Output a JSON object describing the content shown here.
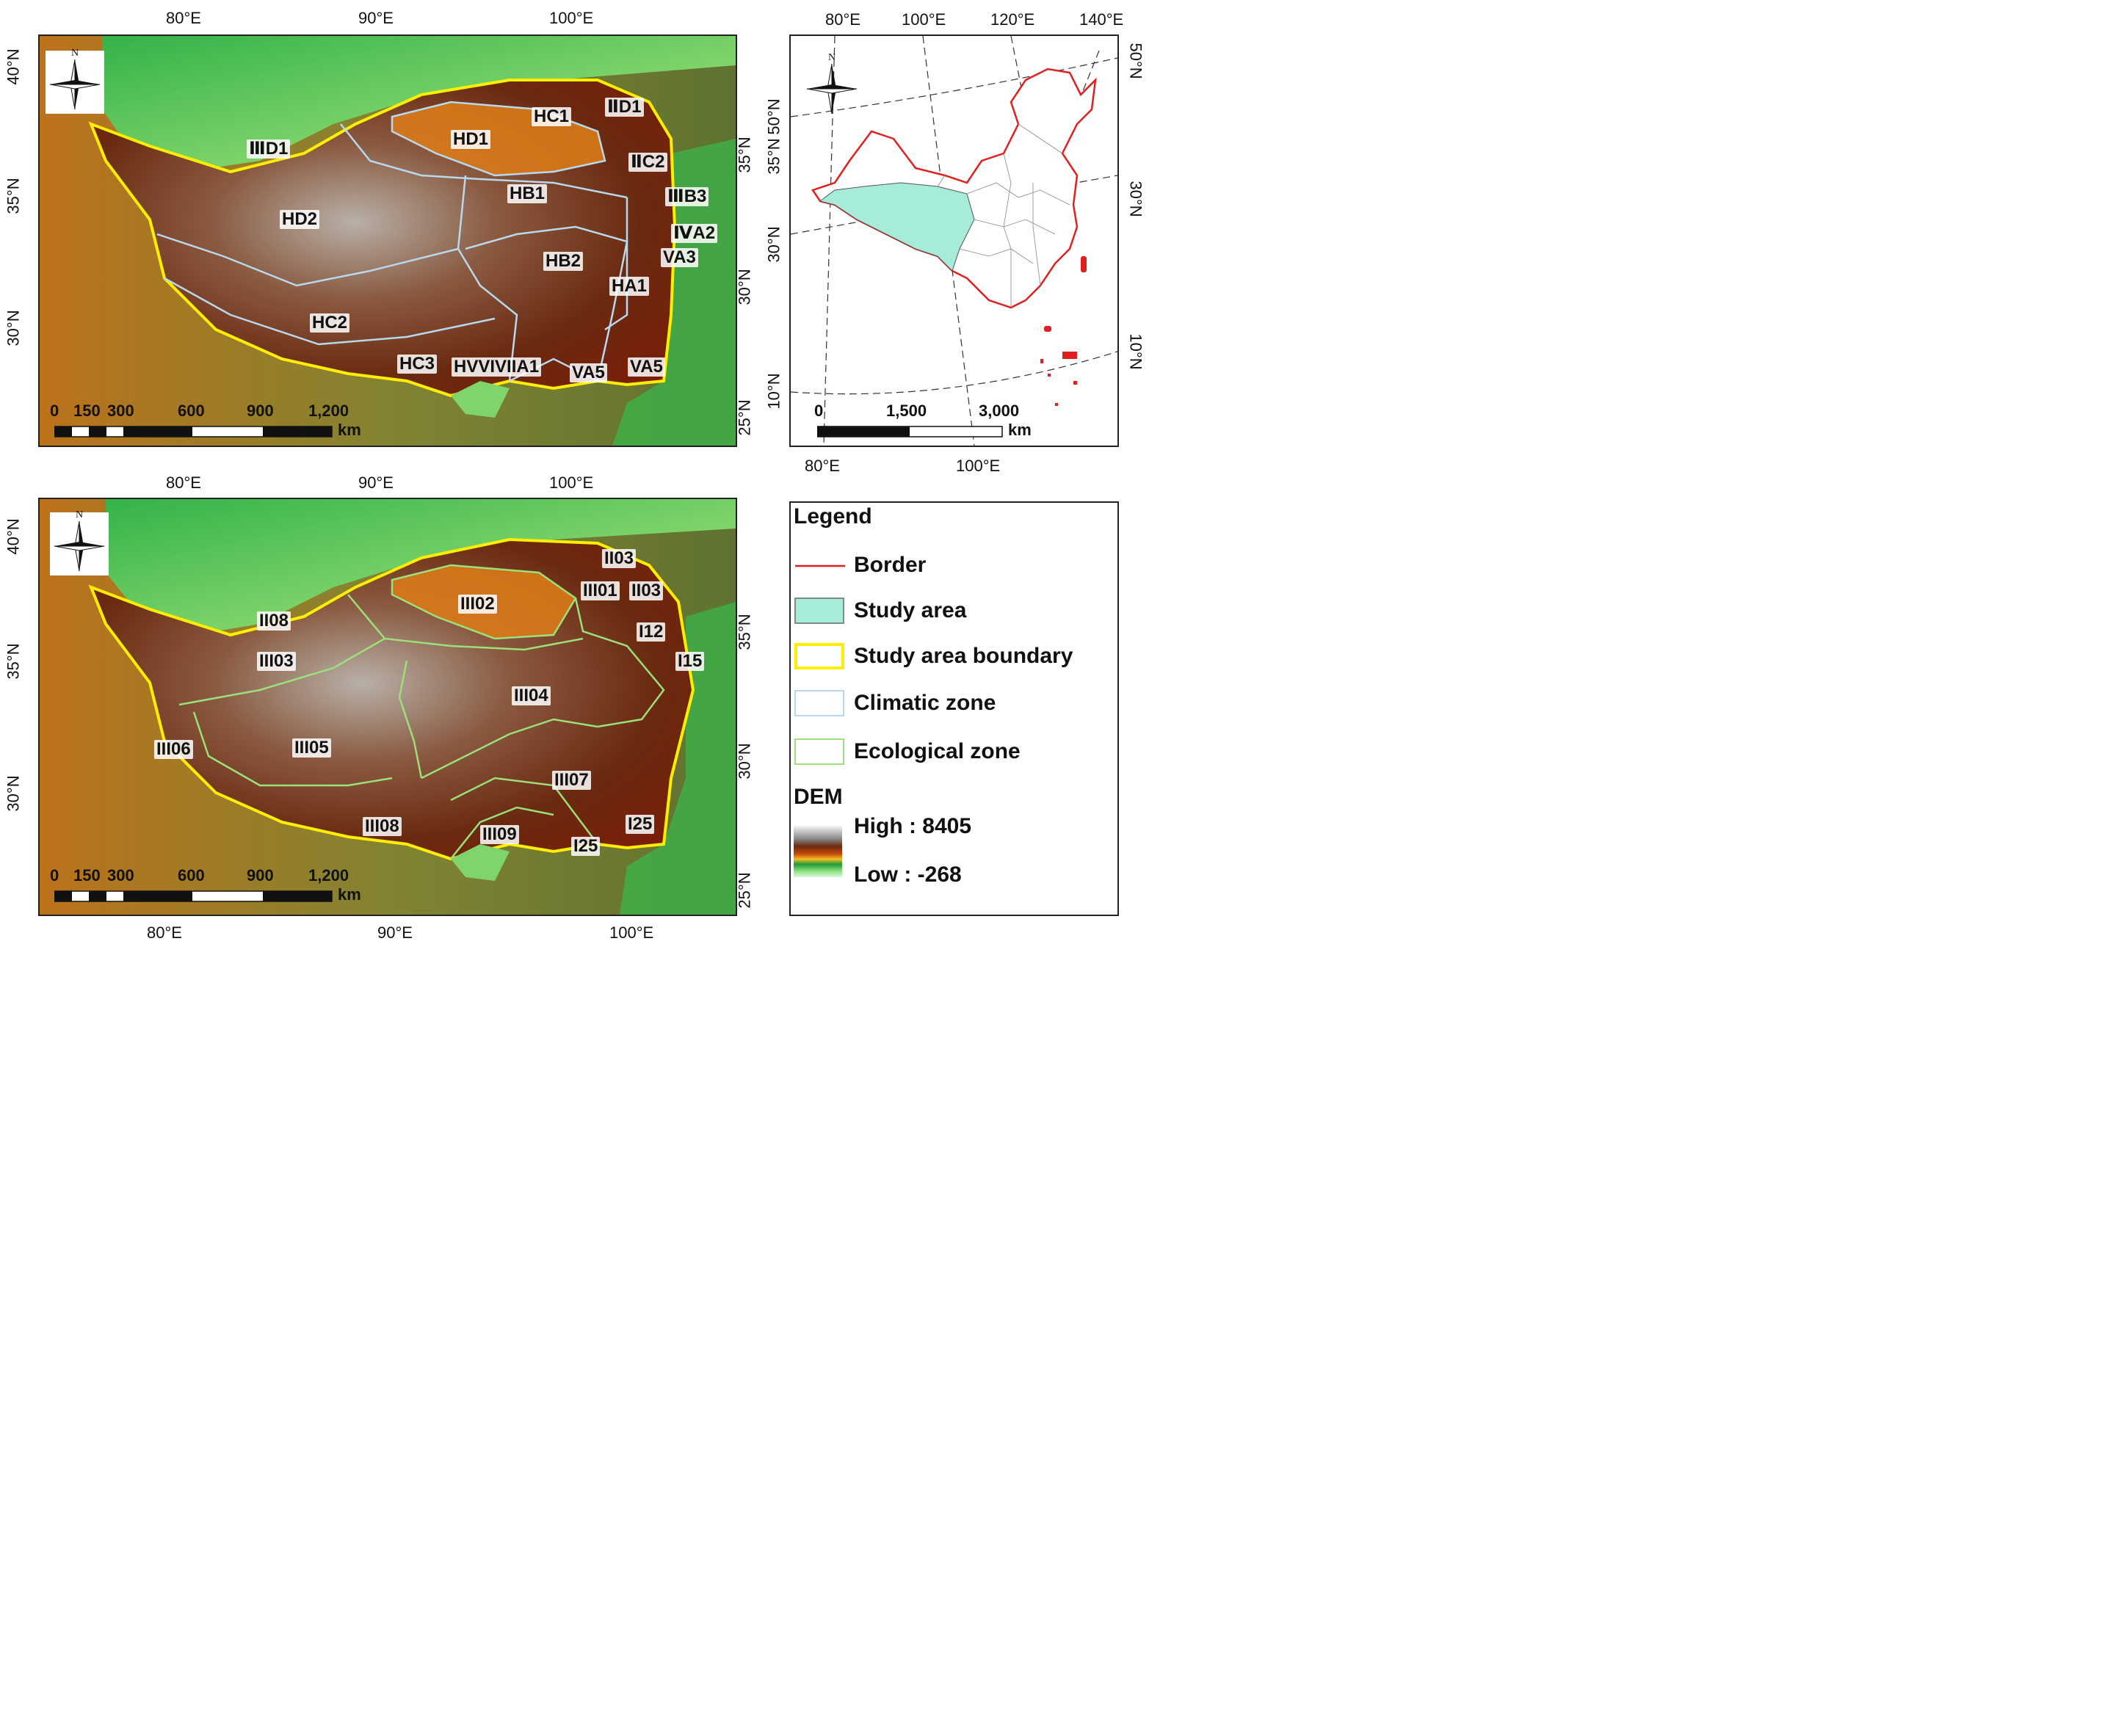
{
  "colors": {
    "border": "#e02020",
    "study_area_fill": "#a6ecd8",
    "study_area_boundary": "#ffee00",
    "climatic_zone": "#b8d8ee",
    "ecological_zone": "#9be07a",
    "dem_high": "#ffffff",
    "dem_mid": "#7a2a0a",
    "dem_low": "#2fa84a"
  },
  "icons": {
    "north_arrow": "north-arrow-icon"
  },
  "top_left_map": {
    "lon_ticks": [
      "80°E",
      "90°E",
      "100°E"
    ],
    "lat_ticks_left": [
      "40°N",
      "35°N",
      "30°N"
    ],
    "lat_ticks_right": [
      "35°N",
      "30°N",
      "25°N"
    ],
    "north_label": "N",
    "zones": [
      {
        "id": "z1",
        "text": "HC1"
      },
      {
        "id": "z2",
        "text": "ⅡD1"
      },
      {
        "id": "z3",
        "text": "HD1"
      },
      {
        "id": "z4",
        "text": "ⅢD1"
      },
      {
        "id": "z5",
        "text": "ⅡC2"
      },
      {
        "id": "z6",
        "text": "HB1"
      },
      {
        "id": "z7",
        "text": "ⅢB3"
      },
      {
        "id": "z8",
        "text": "HD2"
      },
      {
        "id": "z9",
        "text": "ⅣA2"
      },
      {
        "id": "z10",
        "text": "VA3"
      },
      {
        "id": "z11",
        "text": "HB2"
      },
      {
        "id": "z12",
        "text": "HA1"
      },
      {
        "id": "z13",
        "text": "HC2"
      },
      {
        "id": "z14",
        "text": "HC3"
      },
      {
        "id": "z15",
        "text": "HVVIVIIA1"
      },
      {
        "id": "z16",
        "text": "VA5"
      },
      {
        "id": "z17",
        "text": "VA5"
      }
    ],
    "scale": {
      "labels": [
        "0",
        "150",
        "300",
        "600",
        "900",
        "1,200"
      ],
      "unit": "km"
    }
  },
  "top_right_map": {
    "lon_ticks_top": [
      "80°E",
      "100°E",
      "120°E",
      "140°E"
    ],
    "lon_ticks_bottom": [
      "80°E",
      "100°E"
    ],
    "lat_ticks_right": [
      "50°N",
      "30°N",
      "10°N"
    ],
    "lat_ticks_left": [
      "50°N",
      "35°N",
      "30°N",
      "10°N"
    ],
    "north_label": "N",
    "scale": {
      "labels": [
        "0",
        "1,500",
        "3,000"
      ],
      "unit": "km"
    }
  },
  "bottom_left_map": {
    "lon_ticks": [
      "80°E",
      "90°E",
      "100°E"
    ],
    "lat_ticks_left": [
      "40°N",
      "35°N",
      "30°N"
    ],
    "lat_ticks_right": [
      "35°N",
      "30°N",
      "25°N"
    ],
    "north_label": "N",
    "zones": [
      {
        "id": "e1",
        "text": "II03"
      },
      {
        "id": "e2",
        "text": "III01"
      },
      {
        "id": "e3",
        "text": "II03"
      },
      {
        "id": "e4",
        "text": "III02"
      },
      {
        "id": "e5",
        "text": "II08"
      },
      {
        "id": "e6",
        "text": "I12"
      },
      {
        "id": "e7",
        "text": "III03"
      },
      {
        "id": "e8",
        "text": "I15"
      },
      {
        "id": "e9",
        "text": "III04"
      },
      {
        "id": "e10",
        "text": "III06"
      },
      {
        "id": "e11",
        "text": "III05"
      },
      {
        "id": "e12",
        "text": "III07"
      },
      {
        "id": "e13",
        "text": "III08"
      },
      {
        "id": "e14",
        "text": "I25"
      },
      {
        "id": "e15",
        "text": "III09"
      },
      {
        "id": "e16",
        "text": "I25"
      }
    ],
    "scale": {
      "labels": [
        "0",
        "150",
        "300",
        "600",
        "900",
        "1,200"
      ],
      "unit": "km"
    }
  },
  "legend": {
    "title": "Legend",
    "items": [
      {
        "label": "Border"
      },
      {
        "label": "Study area"
      },
      {
        "label": "Study area boundary"
      },
      {
        "label": "Climatic zone"
      },
      {
        "label": "Ecological zone"
      }
    ],
    "dem_title": "DEM",
    "dem_high": "High : 8405",
    "dem_low": "Low : -268"
  }
}
